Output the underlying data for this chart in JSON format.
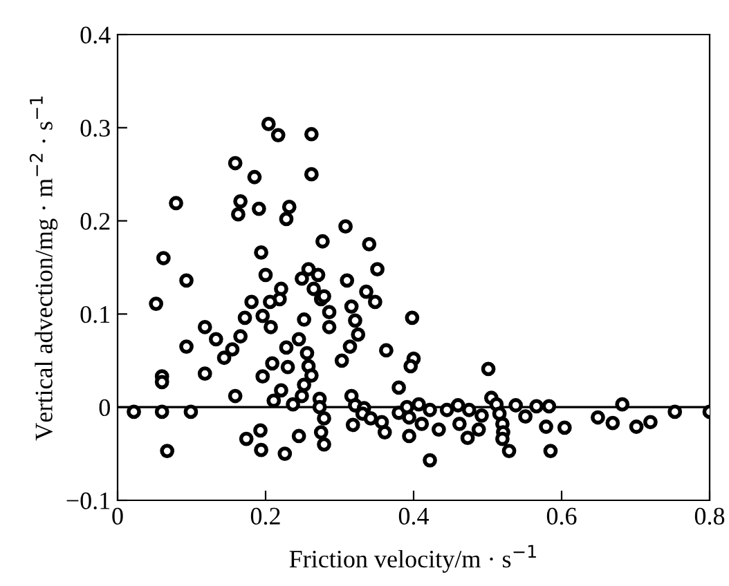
{
  "chart_data": {
    "type": "scatter",
    "xlabel": "Friction velocity/m · s$^{−1}$",
    "ylabel": "Vertical advection/mg · m$^{−2}$ · s$^{−1}$",
    "xlim": [
      0,
      0.8
    ],
    "xticks": [
      0,
      0.2,
      0.4,
      0.6,
      0.8
    ],
    "ylim": [
      -0.1,
      0.4
    ],
    "yticks": [
      {
        "value": -0.1,
        "label": "−0.1"
      },
      0,
      0.1,
      0.2,
      0.3,
      0.4
    ],
    "grid": false,
    "marker": "circle",
    "ref_lines": [
      {
        "axis": "y",
        "value": 0,
        "color": "#000000",
        "line_style": "solid"
      }
    ],
    "series": [
      {
        "color": "#000000",
        "x": [
          0.204,
          0.217,
          0.262,
          0.159,
          0.185,
          0.262,
          0.079,
          0.166,
          0.163,
          0.191,
          0.232,
          0.228,
          0.277,
          0.062,
          0.194,
          0.093,
          0.2,
          0.221,
          0.219,
          0.206,
          0.181,
          0.052,
          0.249,
          0.258,
          0.271,
          0.265,
          0.275,
          0.172,
          0.196,
          0.207,
          0.252,
          0.118,
          0.133,
          0.166,
          0.155,
          0.144,
          0.093,
          0.245,
          0.228,
          0.256,
          0.258,
          0.262,
          0.209,
          0.23,
          0.196,
          0.06,
          0.118,
          0.308,
          0.34,
          0.351,
          0.31,
          0.336,
          0.348,
          0.279,
          0.286,
          0.316,
          0.321,
          0.286,
          0.325,
          0.314,
          0.303,
          0.363,
          0.398,
          0.4,
          0.396,
          0.501,
          0.06,
          0.159,
          0.221,
          0.211,
          0.237,
          0.249,
          0.252,
          0.273,
          0.273,
          0.279,
          0.275,
          0.279,
          0.316,
          0.321,
          0.333,
          0.331,
          0.342,
          0.318,
          0.357,
          0.361,
          0.38,
          0.38,
          0.391,
          0.394,
          0.394,
          0.407,
          0.411,
          0.422,
          0.434,
          0.422,
          0.445,
          0.46,
          0.462,
          0.475,
          0.473,
          0.488,
          0.492,
          0.505,
          0.512,
          0.516,
          0.52,
          0.521,
          0.52,
          0.529,
          0.538,
          0.551,
          0.566,
          0.583,
          0.579,
          0.585,
          0.604,
          0.649,
          0.669,
          0.682,
          0.701,
          0.72,
          0.753,
          0.8,
          0.022,
          0.06,
          0.099,
          0.067,
          0.174,
          0.193,
          0.194,
          0.226,
          0.245
        ],
        "values": [
          0.304,
          0.292,
          0.293,
          0.262,
          0.247,
          0.25,
          0.219,
          0.221,
          0.207,
          0.213,
          0.215,
          0.202,
          0.178,
          0.16,
          0.166,
          0.136,
          0.142,
          0.127,
          0.116,
          0.113,
          0.113,
          0.111,
          0.138,
          0.148,
          0.142,
          0.127,
          0.116,
          0.096,
          0.098,
          0.086,
          0.094,
          0.086,
          0.073,
          0.076,
          0.062,
          0.053,
          0.065,
          0.073,
          0.064,
          0.058,
          0.044,
          0.034,
          0.047,
          0.043,
          0.033,
          0.033,
          0.036,
          0.194,
          0.175,
          0.148,
          0.136,
          0.124,
          0.113,
          0.119,
          0.102,
          0.108,
          0.093,
          0.086,
          0.078,
          0.065,
          0.05,
          0.061,
          0.096,
          0.052,
          0.044,
          0.041,
          0.027,
          0.012,
          0.018,
          0.007,
          0.003,
          0.012,
          0.024,
          0.009,
          0.0,
          -0.012,
          -0.027,
          -0.04,
          0.012,
          0.002,
          -0.001,
          -0.007,
          -0.012,
          -0.019,
          -0.016,
          -0.027,
          0.021,
          -0.006,
          0.0,
          -0.011,
          -0.031,
          0.003,
          -0.018,
          -0.003,
          -0.024,
          -0.057,
          -0.003,
          0.002,
          -0.018,
          -0.003,
          -0.033,
          -0.024,
          -0.009,
          0.01,
          0.003,
          -0.007,
          -0.018,
          -0.027,
          -0.034,
          -0.047,
          0.002,
          -0.01,
          0.001,
          0.001,
          -0.021,
          -0.047,
          -0.022,
          -0.011,
          -0.017,
          0.003,
          -0.021,
          -0.016,
          -0.005,
          -0.005,
          -0.005,
          -0.005,
          -0.005,
          -0.047,
          -0.034,
          -0.025,
          -0.046,
          -0.05,
          -0.031
        ]
      }
    ]
  }
}
